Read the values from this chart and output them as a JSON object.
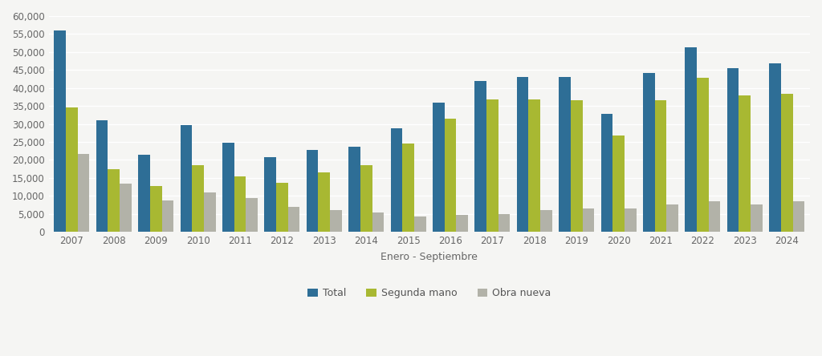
{
  "years": [
    2007,
    2008,
    2009,
    2010,
    2011,
    2012,
    2013,
    2014,
    2015,
    2016,
    2017,
    2018,
    2019,
    2020,
    2021,
    2022,
    2023,
    2024
  ],
  "total": [
    56000,
    31000,
    21500,
    29700,
    24800,
    20700,
    22700,
    23700,
    28700,
    35900,
    42000,
    43000,
    43000,
    32900,
    44100,
    51400,
    45600,
    46800
  ],
  "segunda_mano": [
    34600,
    17500,
    12700,
    18600,
    15300,
    13500,
    16500,
    18500,
    24500,
    31400,
    36900,
    36700,
    36500,
    26700,
    36500,
    42800,
    38000,
    38300
  ],
  "obra_nueva": [
    21700,
    13400,
    8700,
    11000,
    9300,
    7000,
    6100,
    5400,
    4200,
    4600,
    5000,
    6000,
    6500,
    6500,
    7500,
    8500,
    7500,
    8500
  ],
  "color_total": "#2e6e96",
  "color_segunda": "#a8b832",
  "color_obra": "#b2b2a8",
  "xlabel": "Enero - Septiembre",
  "ylim": [
    0,
    60000
  ],
  "yticks": [
    0,
    5000,
    10000,
    15000,
    20000,
    25000,
    30000,
    35000,
    40000,
    45000,
    50000,
    55000,
    60000
  ],
  "legend_labels": [
    "Total",
    "Segunda mano",
    "Obra nueva"
  ],
  "background_color": "#f5f5f3",
  "grid_color": "#ffffff",
  "bar_width": 0.28,
  "tick_fontsize": 8.5,
  "xlabel_fontsize": 9,
  "legend_fontsize": 9
}
